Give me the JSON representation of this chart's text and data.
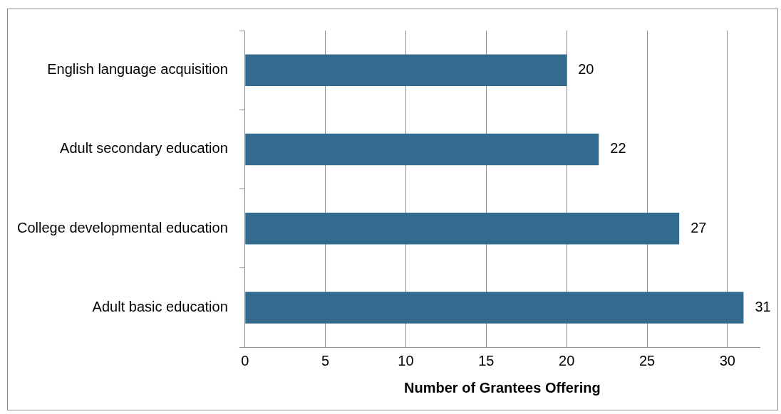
{
  "chart_data": {
    "type": "bar",
    "orientation": "horizontal",
    "xlabel": "Number of Grantees Offering",
    "categories": [
      "English language acquisition",
      "Adult secondary education",
      "College developmental education",
      "Adult basic education"
    ],
    "values": [
      20,
      22,
      27,
      31
    ],
    "color": "#336b8f",
    "xlim": [
      0,
      32
    ],
    "xticks": [
      0,
      5,
      10,
      15,
      20,
      25,
      30
    ],
    "grid": "x",
    "data_labels": true,
    "legend": false
  }
}
